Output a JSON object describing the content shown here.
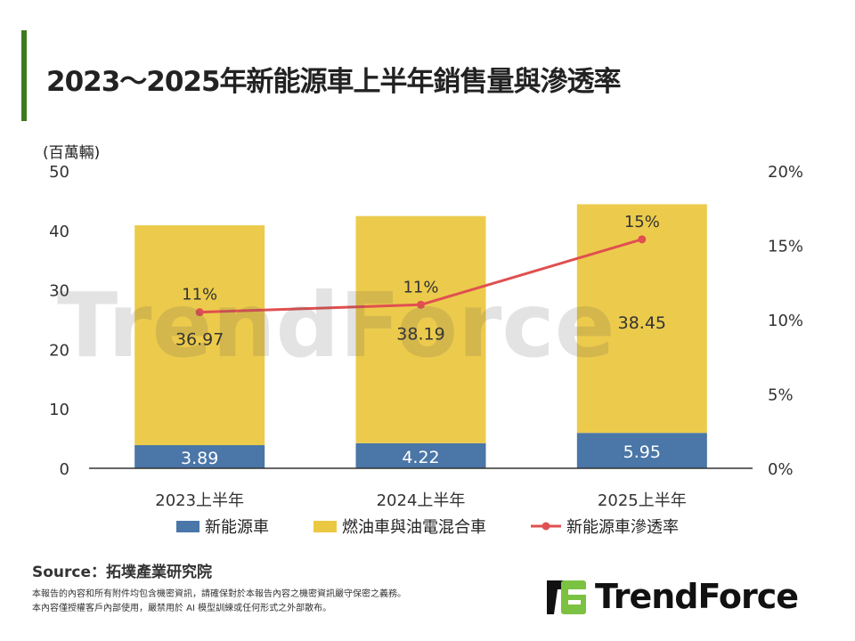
{
  "title": "2023～2025年新能源車上半年銷售量與滲透率",
  "unit_label": "(百萬輛)",
  "chart_data": {
    "type": "bar+line",
    "categories": [
      "2023上半年",
      "2024上半年",
      "2025上半年"
    ],
    "series": [
      {
        "name": "新能源車",
        "type": "stacked-bar",
        "axis": "left",
        "color": "#4a76a8",
        "values": [
          3.89,
          4.22,
          5.95
        ]
      },
      {
        "name": "燃油車與油電混合車",
        "type": "stacked-bar",
        "axis": "left",
        "color": "#ebc842",
        "values": [
          36.97,
          38.19,
          38.45
        ]
      },
      {
        "name": "新能源車滲透率",
        "type": "line",
        "axis": "right",
        "color": "#e05050",
        "values": [
          10.5,
          11.0,
          15.4
        ],
        "labels": [
          "11%",
          "11%",
          "15%"
        ]
      }
    ],
    "left_axis": {
      "ylim": [
        0,
        50
      ],
      "ticks": [
        "0",
        "10",
        "20",
        "30",
        "40",
        "50"
      ]
    },
    "right_axis": {
      "ylim": [
        0,
        20
      ],
      "ticks": [
        "0%",
        "5%",
        "10%",
        "15%",
        "20%"
      ]
    },
    "grid": false,
    "legend": "bottom"
  },
  "source": "Source：拓墣產業研究院",
  "disclaimer": [
    "本報告的內容和所有附件均包含機密資訊，請確保對於本報告內容之機密資訊嚴守保密之義務。",
    "本內容僅授權客戶內部使用，嚴禁用於 AI 模型訓練或任何形式之外部散布。"
  ],
  "logo": "TrendForce",
  "watermark": "TrendForce"
}
